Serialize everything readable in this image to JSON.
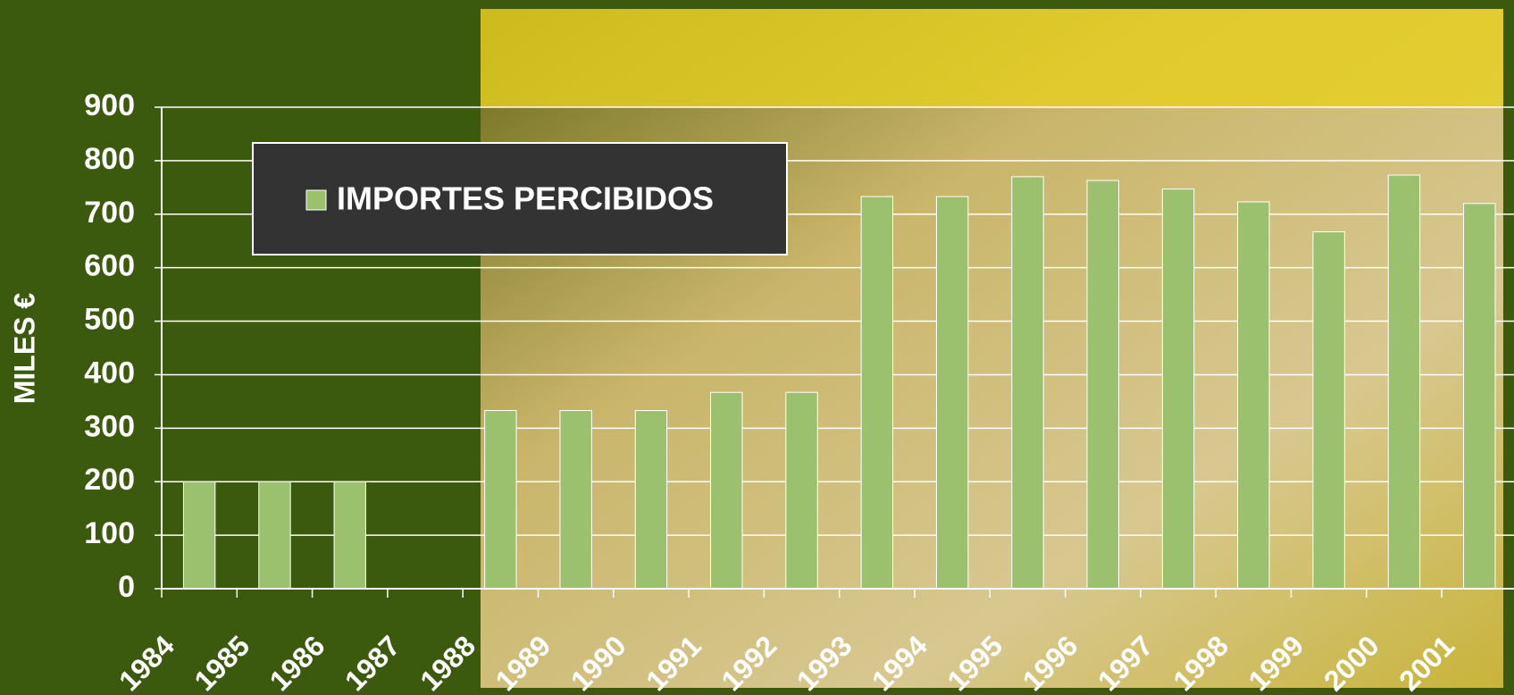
{
  "chart_data": {
    "type": "bar",
    "y_label": "MILES €",
    "categories": [
      "1984",
      "1985",
      "1986",
      "1987",
      "1988",
      "1989",
      "1990",
      "1991",
      "1992",
      "1993",
      "1994",
      "1995",
      "1996",
      "1997",
      "1998",
      "1999",
      "2000",
      "2001"
    ],
    "series": [
      {
        "name": "IMPORTES PERCIBIDOS",
        "color": "#9bc16e",
        "values": [
          200,
          200,
          200,
          null,
          333,
          333,
          333,
          367,
          367,
          733,
          733,
          770,
          763,
          747,
          723,
          667,
          773,
          720
        ]
      }
    ],
    "ylim": [
      0,
      900
    ],
    "yticks": [
      0,
      100,
      200,
      300,
      400,
      500,
      600,
      700,
      800,
      900
    ],
    "grid": true
  }
}
